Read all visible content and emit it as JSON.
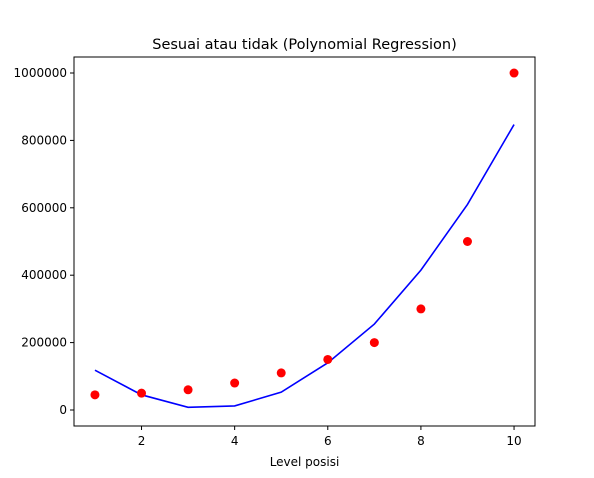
{
  "chart_data": {
    "type": "scatter",
    "title": "Sesuai atau tidak (Polynomial Regression)",
    "xlabel": "Level posisi",
    "ylabel": "",
    "xlim": [
      0.55,
      10.45
    ],
    "ylim": [
      -47500,
      1047500
    ],
    "x_ticks": [
      2,
      4,
      6,
      8,
      10
    ],
    "y_ticks": [
      0,
      200000,
      400000,
      600000,
      800000,
      1000000
    ],
    "x_tick_labels": [
      "2",
      "4",
      "6",
      "8",
      "10"
    ],
    "y_tick_labels": [
      "0",
      "200000",
      "400000",
      "600000",
      "800000",
      "1000000"
    ],
    "grid": false,
    "series": [
      {
        "kind": "scatter",
        "color": "#ff0000",
        "x": [
          1,
          2,
          3,
          4,
          5,
          6,
          7,
          8,
          9,
          10
        ],
        "y": [
          45000,
          50000,
          60000,
          80000,
          110000,
          150000,
          200000,
          300000,
          500000,
          1000000
        ]
      },
      {
        "kind": "line",
        "color": "#0000ff",
        "x": [
          1,
          2,
          3,
          4,
          5,
          6,
          7,
          8,
          9,
          10
        ],
        "y": [
          118000,
          45000,
          8000,
          12000,
          53000,
          140000,
          255000,
          415000,
          610000,
          847000
        ]
      }
    ]
  }
}
